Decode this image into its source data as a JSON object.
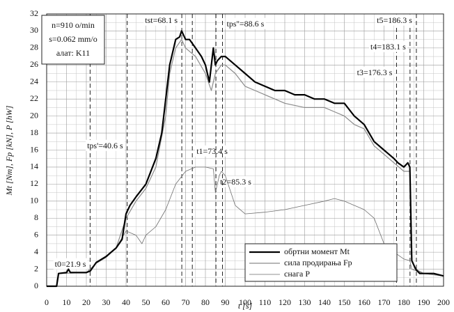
{
  "chart_data": {
    "type": "line",
    "xlabel": "t [s]",
    "ylabel": "Mt [Nm], Fp [kN], P [hW]",
    "xlim": [
      0,
      200
    ],
    "ylim": [
      0,
      32
    ],
    "xticks": [
      0,
      10,
      20,
      30,
      40,
      50,
      60,
      70,
      80,
      90,
      100,
      110,
      120,
      130,
      140,
      150,
      160,
      170,
      180,
      190,
      200
    ],
    "yticks": [
      0,
      2,
      4,
      6,
      8,
      10,
      12,
      14,
      16,
      18,
      20,
      22,
      24,
      26,
      28,
      30,
      32
    ],
    "grid": true,
    "info_box": [
      "n=910 o/min",
      "s=0.062 mm/o",
      "алат: K11"
    ],
    "annotations": [
      {
        "x": 21.9,
        "label": "t0=21.9 s"
      },
      {
        "x": 40.6,
        "label": "tps'=40.6 s"
      },
      {
        "x": 68.1,
        "label": "tst=68.1 s"
      },
      {
        "x": 73.4,
        "label": "t1=73.4 s"
      },
      {
        "x": 85.3,
        "label": "t2=85.3 s"
      },
      {
        "x": 88.6,
        "label": "tps''=88.6 s"
      },
      {
        "x": 176.3,
        "label": "t3=176.3 s"
      },
      {
        "x": 183.1,
        "label": "t4=183.1 s"
      },
      {
        "x": 186.3,
        "label": "t5=186.3 s"
      }
    ],
    "series": [
      {
        "name": "обртни момент Mt",
        "color": "#000000",
        "width": 2.2,
        "x": [
          0,
          5,
          6,
          10,
          11,
          12,
          20,
          22,
          25,
          30,
          35,
          38,
          40,
          42,
          45,
          50,
          55,
          58,
          60,
          62,
          65,
          67,
          68,
          70,
          72,
          75,
          78,
          80,
          82,
          84,
          85,
          86,
          88,
          90,
          95,
          100,
          105,
          110,
          115,
          120,
          125,
          130,
          135,
          140,
          145,
          150,
          155,
          160,
          165,
          170,
          175,
          177,
          180,
          182,
          183,
          184,
          186,
          188,
          195,
          200
        ],
        "values": [
          0,
          0,
          1.5,
          1.6,
          2,
          1.6,
          1.6,
          1.8,
          2.8,
          3.5,
          4.5,
          5.5,
          8.5,
          9.5,
          10.5,
          12,
          15,
          18,
          22,
          26,
          29,
          29.3,
          30,
          29,
          29,
          28,
          27,
          26,
          24,
          28,
          26,
          26.5,
          27,
          27,
          26,
          25,
          24,
          23.5,
          23,
          23,
          22.5,
          22.5,
          22,
          22,
          21.5,
          21.5,
          20,
          19,
          17,
          16,
          15,
          14.5,
          14,
          14.5,
          14,
          3,
          2,
          1.5,
          1.5,
          1.2
        ]
      },
      {
        "name": "сила продирања Fp",
        "color": "#8a8a8a",
        "width": 1.2,
        "x": [
          0,
          5,
          6,
          20,
          25,
          30,
          35,
          40,
          45,
          50,
          55,
          60,
          62,
          65,
          68,
          70,
          75,
          80,
          83,
          85,
          88,
          90,
          95,
          100,
          105,
          110,
          115,
          120,
          130,
          140,
          145,
          150,
          155,
          160,
          165,
          170,
          175,
          180,
          183,
          184,
          186,
          190,
          200
        ],
        "values": [
          0,
          0,
          1.5,
          1.6,
          2.7,
          3.4,
          4.5,
          8,
          10,
          11.5,
          14,
          20,
          25,
          28,
          29,
          28,
          27,
          25,
          23,
          25,
          26,
          26,
          25,
          23.5,
          23,
          22.5,
          22,
          21.5,
          21,
          21,
          20.5,
          20,
          19,
          18.5,
          16.5,
          15.5,
          14.5,
          13.5,
          13.5,
          3,
          2,
          1.5,
          1.2
        ]
      },
      {
        "name": "снага P",
        "color": "#6e6e6e",
        "width": 0.8,
        "x": [
          0,
          5,
          6,
          20,
          25,
          30,
          35,
          40,
          45,
          48,
          50,
          55,
          60,
          65,
          70,
          75,
          80,
          84,
          85,
          87,
          88,
          90,
          95,
          100,
          110,
          120,
          130,
          140,
          145,
          150,
          160,
          165,
          170,
          175,
          180,
          183,
          184,
          190,
          200
        ],
        "values": [
          0,
          0,
          1.5,
          1.6,
          2.7,
          3.4,
          4.5,
          6.5,
          6,
          5,
          6,
          7,
          9,
          12,
          13.5,
          14,
          14,
          13.8,
          11,
          13,
          13.5,
          13,
          9.5,
          8.5,
          8.7,
          9,
          9.5,
          10,
          10.3,
          10,
          9,
          8,
          5,
          4,
          3.2,
          3,
          2,
          1.5,
          1.2
        ]
      }
    ]
  }
}
